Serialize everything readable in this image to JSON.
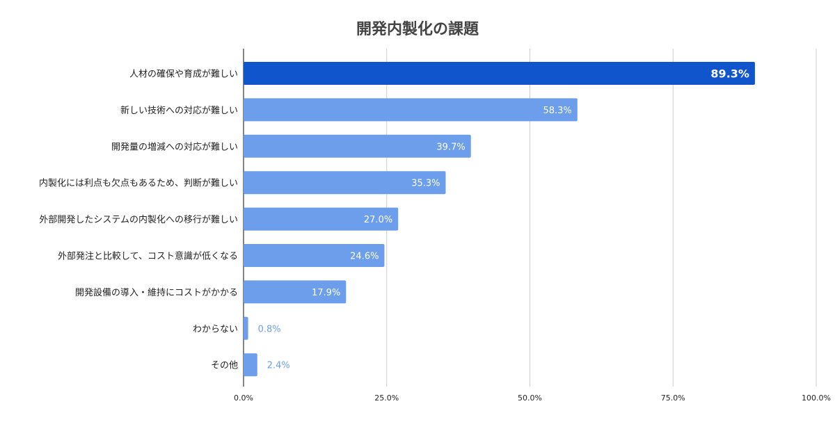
{
  "chart_data": {
    "type": "bar",
    "orientation": "horizontal",
    "title": "開発内製化の課題",
    "xlabel": "",
    "ylabel": "",
    "xlim": [
      0,
      100
    ],
    "grid": true,
    "legend": "none",
    "ticks": [
      "0.0%",
      "25.0%",
      "50.0%",
      "75.0%",
      "100.0%"
    ],
    "tick_values": [
      0,
      25,
      50,
      75,
      100
    ],
    "categories": [
      "人材の確保や育成が難しい",
      "新しい技術への対応が難しい",
      "開発量の増減への対応が難しい",
      "内製化には利点も欠点もあるため、判断が難しい",
      "外部開発したシステムの内製化への移行が難しい",
      "外部発注と比較して、コスト意識が低くなる",
      "開発設備の導入・維持にコストがかかる",
      "わからない",
      "その他"
    ],
    "values": [
      89.3,
      58.3,
      39.7,
      35.3,
      27.0,
      24.6,
      17.9,
      0.8,
      2.4
    ],
    "value_labels": [
      "89.3%",
      "58.3%",
      "39.7%",
      "35.3%",
      "27.0%",
      "24.6%",
      "17.9%",
      "0.8%",
      "2.4%"
    ],
    "highlight_index": 0,
    "colors": {
      "highlight": "#1155cc",
      "bar": "#6d9eeb",
      "grid": "#cccccc",
      "axis": "#333333"
    }
  }
}
